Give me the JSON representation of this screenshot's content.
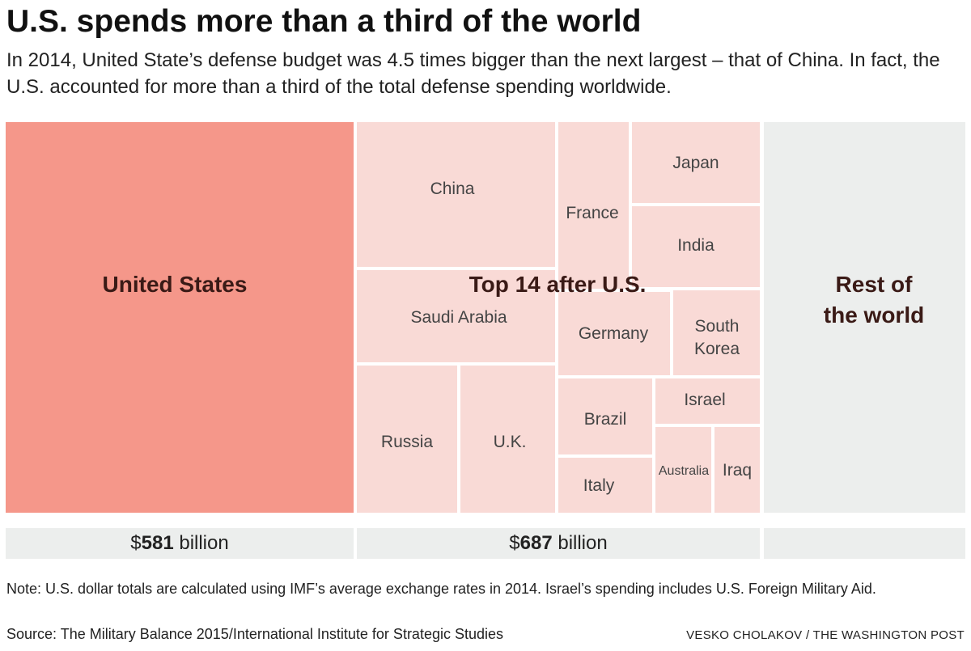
{
  "title": "U.S. spends more than a third of the world",
  "subtitle": "In 2014, United State’s defense budget was 4.5 times bigger than the next largest – that of China. In fact, the U.S. accounted for more than a third of the total defense spending worldwide.",
  "chart_data": {
    "type": "treemap",
    "groups": [
      {
        "name": "United States",
        "total_prefix": "$",
        "total_value": "581",
        "total_suffix": " billion"
      },
      {
        "name": "Top 14 after U.S.",
        "total_prefix": "$",
        "total_value": "687",
        "total_suffix": " billion",
        "members": [
          "China",
          "France",
          "Japan",
          "India",
          "Saudi Arabia",
          "Germany",
          "South Korea",
          "Russia",
          "U.K.",
          "Brazil",
          "Israel",
          "Italy",
          "Australia",
          "Iraq"
        ]
      },
      {
        "name": "Rest of the world",
        "name_lines": [
          "Rest of",
          "the world"
        ]
      }
    ]
  },
  "colors": {
    "us": "#f5978a",
    "top14": "#f9dad6",
    "rest": "#eceeed"
  },
  "note": "Note: U.S. dollar totals are calculated using IMF’s average exchange rates in 2014. Israel’s spending includes U.S. Foreign Military Aid.",
  "source": "Source: The Military Balance 2015/International Institute for Strategic Studies",
  "credit": "VESKO CHOLAKOV / THE WASHINGTON POST"
}
